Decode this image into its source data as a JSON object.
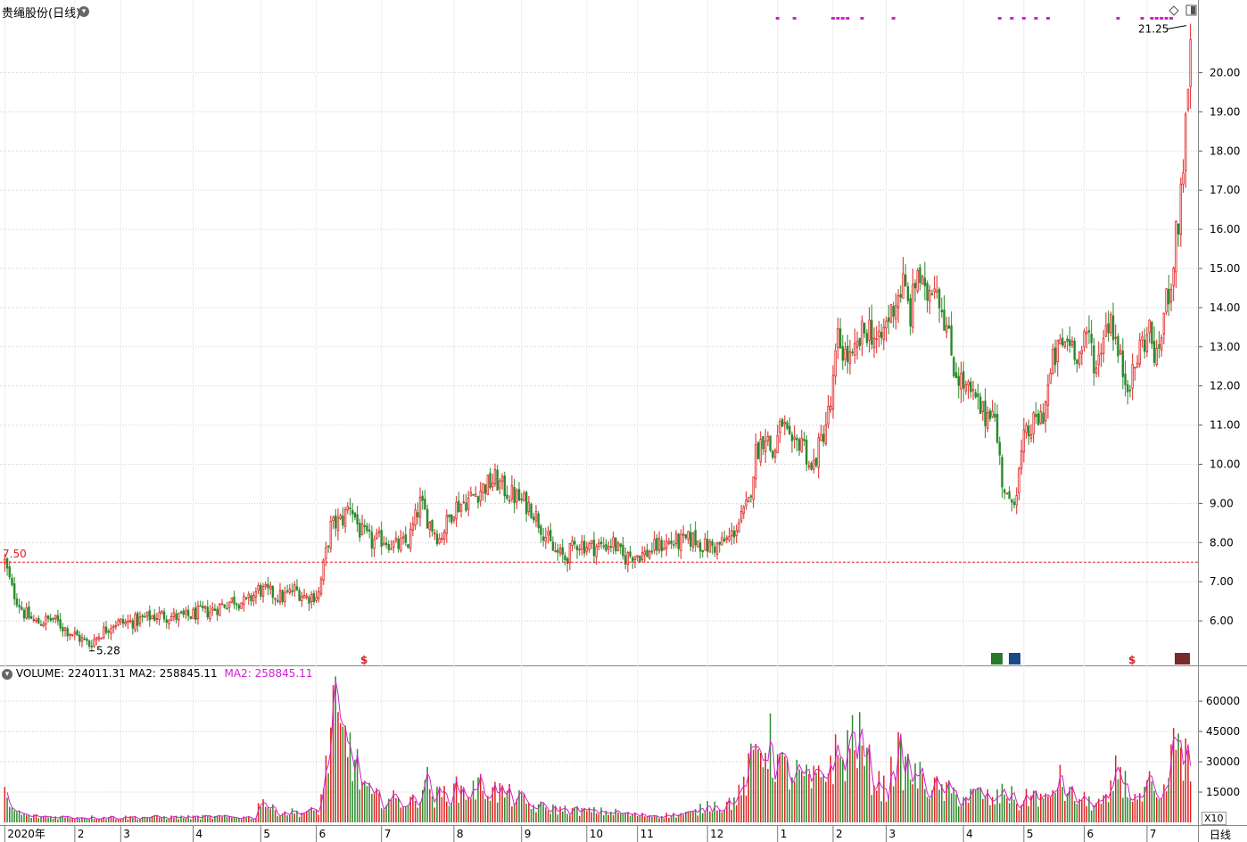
{
  "header": {
    "title": "贵绳股份(日线)",
    "volume_label": "VOLUME:",
    "volume_value": "224011.31",
    "ma2_label": "MA2:",
    "ma2_value": "258845.11",
    "ma2_label_2": "MA2:",
    "ma2_value_2": "258845.11",
    "period_label": "日线",
    "multiplier_label": "X10"
  },
  "colors": {
    "up": "#e02020",
    "down": "#2a8a2a",
    "ma_line": "#d020d0",
    "ref_line": "#e02020",
    "grid": "#cccccc",
    "marker_orange": "#d02020",
    "badge_green": "#2a7a2a",
    "badge_blue": "#1a4a8a",
    "badge_brown": "#7a2a2a"
  },
  "chart_data": [
    {
      "type": "candlestick",
      "panel": "price",
      "title": "贵绳股份(日线)",
      "ylim": [
        5.0,
        21.4
      ],
      "y_ticks": [
        "6.00",
        "7.00",
        "8.00",
        "9.00",
        "10.00",
        "11.00",
        "12.00",
        "13.00",
        "14.00",
        "15.00",
        "16.00",
        "17.00",
        "18.00",
        "19.00",
        "20.00"
      ],
      "reference_line": {
        "value": 7.5,
        "label": "7.50"
      },
      "annotations": [
        {
          "label": "5.28",
          "value": 5.28,
          "kind": "low"
        },
        {
          "label": "21.25",
          "value": 21.25,
          "kind": "high"
        }
      ],
      "anchor_points": [
        [
          0,
          7.5
        ],
        [
          3,
          6.8
        ],
        [
          8,
          6.2
        ],
        [
          13,
          5.95
        ],
        [
          20,
          6.05
        ],
        [
          25,
          5.8
        ],
        [
          30,
          5.6
        ],
        [
          35,
          5.4
        ],
        [
          40,
          5.7
        ],
        [
          45,
          5.95
        ],
        [
          50,
          5.95
        ],
        [
          55,
          6.0
        ],
        [
          60,
          6.1
        ],
        [
          65,
          6.15
        ],
        [
          70,
          6.1
        ],
        [
          75,
          6.1
        ],
        [
          80,
          6.2
        ],
        [
          85,
          6.25
        ],
        [
          90,
          6.4
        ],
        [
          95,
          6.55
        ],
        [
          100,
          6.45
        ],
        [
          105,
          6.8
        ],
        [
          110,
          6.7
        ],
        [
          115,
          6.6
        ],
        [
          120,
          6.8
        ],
        [
          125,
          6.6
        ],
        [
          130,
          6.7
        ],
        [
          132,
          7.4
        ],
        [
          135,
          8.4
        ],
        [
          140,
          8.6
        ],
        [
          143,
          9.0
        ],
        [
          147,
          8.3
        ],
        [
          152,
          8.0
        ],
        [
          157,
          8.1
        ],
        [
          162,
          7.9
        ],
        [
          167,
          8.0
        ],
        [
          172,
          9.0
        ],
        [
          176,
          8.5
        ],
        [
          180,
          8.1
        ],
        [
          186,
          8.9
        ],
        [
          192,
          9.1
        ],
        [
          198,
          9.4
        ],
        [
          203,
          9.6
        ],
        [
          208,
          9.3
        ],
        [
          213,
          9.1
        ],
        [
          218,
          8.9
        ],
        [
          223,
          8.3
        ],
        [
          227,
          7.8
        ],
        [
          232,
          7.6
        ],
        [
          237,
          8.0
        ],
        [
          242,
          7.9
        ],
        [
          247,
          7.9
        ],
        [
          252,
          8.0
        ],
        [
          256,
          7.6
        ],
        [
          260,
          7.7
        ],
        [
          265,
          7.7
        ],
        [
          270,
          7.9
        ],
        [
          275,
          8.0
        ],
        [
          280,
          8.0
        ],
        [
          285,
          8.1
        ],
        [
          290,
          7.9
        ],
        [
          295,
          7.9
        ],
        [
          300,
          8.1
        ],
        [
          305,
          8.6
        ],
        [
          308,
          9.0
        ],
        [
          311,
          10.3
        ],
        [
          315,
          10.8
        ],
        [
          318,
          10.2
        ],
        [
          322,
          11.1
        ],
        [
          326,
          10.3
        ],
        [
          330,
          10.7
        ],
        [
          334,
          9.8
        ],
        [
          338,
          10.6
        ],
        [
          342,
          11.5
        ],
        [
          345,
          13.2
        ],
        [
          348,
          12.8
        ],
        [
          351,
          12.6
        ],
        [
          355,
          13.3
        ],
        [
          358,
          13.5
        ],
        [
          362,
          13.0
        ],
        [
          365,
          13.6
        ],
        [
          369,
          14.2
        ],
        [
          372,
          14.6
        ],
        [
          375,
          13.8
        ],
        [
          378,
          15.0
        ],
        [
          381,
          14.2
        ],
        [
          385,
          14.8
        ],
        [
          389,
          13.8
        ],
        [
          393,
          12.5
        ],
        [
          397,
          12.0
        ],
        [
          402,
          11.6
        ],
        [
          406,
          11.2
        ],
        [
          409,
          11.6
        ],
        [
          413,
          9.6
        ],
        [
          416,
          8.9
        ],
        [
          419,
          9.4
        ],
        [
          422,
          10.6
        ],
        [
          426,
          11.0
        ],
        [
          430,
          11.3
        ],
        [
          434,
          12.6
        ],
        [
          437,
          13.0
        ],
        [
          441,
          13.2
        ],
        [
          445,
          12.8
        ],
        [
          449,
          13.3
        ],
        [
          452,
          12.4
        ],
        [
          455,
          13.4
        ],
        [
          458,
          13.8
        ],
        [
          461,
          12.8
        ],
        [
          464,
          12.2
        ],
        [
          467,
          12.2
        ],
        [
          470,
          13.0
        ],
        [
          474,
          13.4
        ],
        [
          477,
          12.6
        ],
        [
          480,
          13.8
        ],
        [
          483,
          14.8
        ],
        [
          486,
          16.2
        ],
        [
          488,
          17.8
        ],
        [
          490,
          19.2
        ],
        [
          491,
          21.25
        ]
      ],
      "total_bars": 492,
      "x_tick_labels": [
        "2020年",
        "2",
        "3",
        "4",
        "5",
        "6",
        "7",
        "8",
        "9",
        "10",
        "11",
        "12",
        "1",
        "2",
        "3",
        "4",
        "5",
        "6",
        "7"
      ],
      "x_tick_bars": [
        0,
        29,
        48,
        78,
        106,
        129,
        156,
        186,
        214,
        241,
        262,
        291,
        320,
        343,
        365,
        397,
        422,
        447,
        473
      ]
    },
    {
      "type": "bar",
      "panel": "volume",
      "series": [
        {
          "name": "VOLUME"
        },
        {
          "name": "MA2"
        }
      ],
      "ylim": [
        0,
        68000
      ],
      "y_ticks": [
        "15000",
        "30000",
        "45000",
        "60000"
      ],
      "anchor_points": [
        [
          0,
          13000
        ],
        [
          3,
          6000
        ],
        [
          10,
          3000
        ],
        [
          30,
          2500
        ],
        [
          60,
          2500
        ],
        [
          90,
          2600
        ],
        [
          104,
          2500
        ],
        [
          106,
          13000
        ],
        [
          110,
          6500
        ],
        [
          115,
          5000
        ],
        [
          125,
          5000
        ],
        [
          130,
          6000
        ],
        [
          133,
          25000
        ],
        [
          136,
          55000
        ],
        [
          139,
          40000
        ],
        [
          143,
          38000
        ],
        [
          147,
          22000
        ],
        [
          152,
          12000
        ],
        [
          162,
          11000
        ],
        [
          170,
          10000
        ],
        [
          174,
          22000
        ],
        [
          178,
          12000
        ],
        [
          186,
          16000
        ],
        [
          192,
          15000
        ],
        [
          198,
          18000
        ],
        [
          204,
          15000
        ],
        [
          212,
          12000
        ],
        [
          218,
          8000
        ],
        [
          228,
          6500
        ],
        [
          240,
          5500
        ],
        [
          252,
          5000
        ],
        [
          262,
          3500
        ],
        [
          275,
          3500
        ],
        [
          285,
          4500
        ],
        [
          292,
          9000
        ],
        [
          298,
          8000
        ],
        [
          305,
          14000
        ],
        [
          312,
          38000
        ],
        [
          316,
          40000
        ],
        [
          322,
          26000
        ],
        [
          328,
          23000
        ],
        [
          334,
          19000
        ],
        [
          338,
          22000
        ],
        [
          343,
          32000
        ],
        [
          347,
          30000
        ],
        [
          352,
          45000
        ],
        [
          356,
          32000
        ],
        [
          360,
          22000
        ],
        [
          365,
          15000
        ],
        [
          369,
          33000
        ],
        [
          373,
          27000
        ],
        [
          378,
          22000
        ],
        [
          384,
          17000
        ],
        [
          390,
          15000
        ],
        [
          397,
          12000
        ],
        [
          404,
          14000
        ],
        [
          410,
          10000
        ],
        [
          414,
          16000
        ],
        [
          420,
          9000
        ],
        [
          426,
          14000
        ],
        [
          432,
          10000
        ],
        [
          436,
          22000
        ],
        [
          440,
          14000
        ],
        [
          446,
          11000
        ],
        [
          452,
          9000
        ],
        [
          457,
          10000
        ],
        [
          461,
          28000
        ],
        [
          465,
          16000
        ],
        [
          470,
          10000
        ],
        [
          474,
          18000
        ],
        [
          478,
          8000
        ],
        [
          482,
          22000
        ],
        [
          485,
          42000
        ],
        [
          488,
          36000
        ],
        [
          491,
          22000
        ]
      ]
    }
  ]
}
